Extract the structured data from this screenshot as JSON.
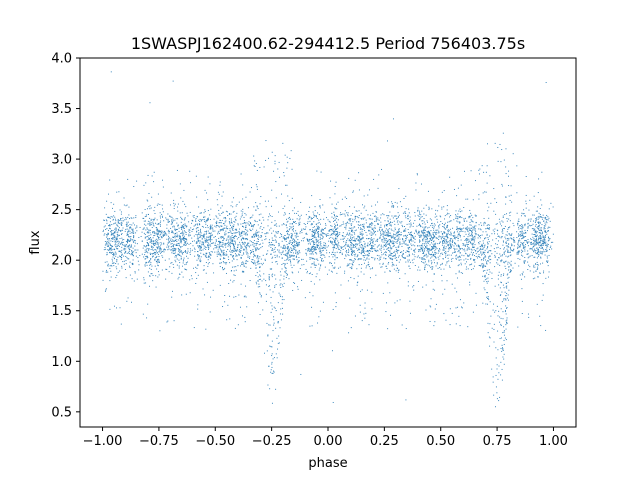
{
  "chart_data": {
    "type": "scatter",
    "title": "1SWASPJ162400.62-294412.5 Period 756403.75s",
    "xlabel": "phase",
    "ylabel": "flux",
    "xlim": [
      -1.1,
      1.1
    ],
    "ylim": [
      0.35,
      4.0
    ],
    "xticks": [
      -1.0,
      -0.75,
      -0.5,
      -0.25,
      0.0,
      0.25,
      0.5,
      0.75,
      1.0
    ],
    "xtick_labels": [
      "−1.00",
      "−0.75",
      "−0.50",
      "−0.25",
      "0.00",
      "0.25",
      "0.50",
      "0.75",
      "1.00"
    ],
    "yticks": [
      0.5,
      1.0,
      1.5,
      2.0,
      2.5,
      3.0,
      3.5,
      4.0
    ],
    "ytick_labels": [
      "0.5",
      "1.0",
      "1.5",
      "2.0",
      "2.5",
      "3.0",
      "3.5",
      "4.0"
    ],
    "grid": false,
    "point_color": "#1f77b4",
    "series": [
      {
        "baseline_flux": 2.2,
        "phase_range": [
          -1.0,
          1.0
        ],
        "dip_phases": [
          -0.25,
          0.75
        ],
        "dip_min_flux": 0.7,
        "point_count": 6000
      }
    ]
  }
}
